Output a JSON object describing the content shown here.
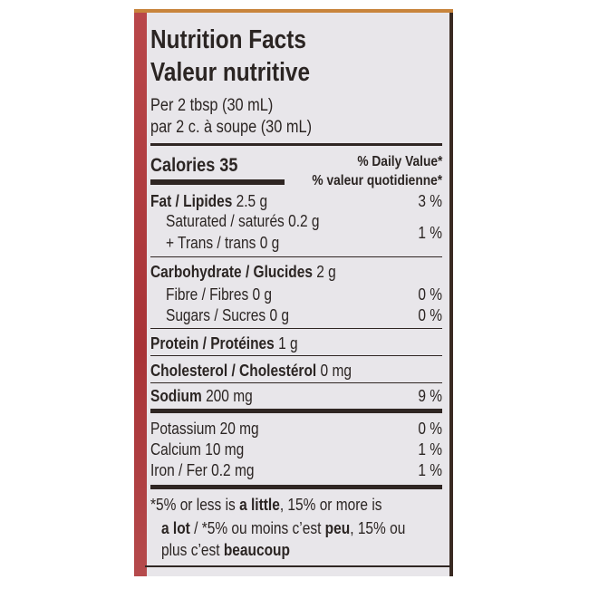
{
  "title_en": "Nutrition Facts",
  "title_fr": "Valeur nutritive",
  "serving_en": "Per 2 tbsp (30 mL)",
  "serving_fr": "par 2 c. à soupe (30 mL)",
  "calories": {
    "label": "Calories",
    "value": "35"
  },
  "dv_header_en": "% Daily Value*",
  "dv_header_fr": "% valeur quotidienne*",
  "rows": [
    {
      "label": "Fat / Lipides",
      "value": "2.5 g",
      "dv": "3 %"
    },
    {
      "label": "Saturated / saturés",
      "value": "0.2 g"
    },
    {
      "label": "+ Trans / trans",
      "value": "0 g",
      "dv": "1 %"
    },
    {
      "label": "Carbohydrate / Glucides",
      "value": "2 g"
    },
    {
      "label": "Fibre / Fibres",
      "value": "0 g",
      "dv": "0 %"
    },
    {
      "label": "Sugars / Sucres",
      "value": "0 g",
      "dv": "0 %"
    },
    {
      "label": "Protein / Protéines",
      "value": "1 g"
    },
    {
      "label": "Cholesterol / Cholestérol",
      "value": "0 mg"
    },
    {
      "label": "Sodium",
      "value": "200 mg",
      "dv": "9 %"
    },
    {
      "label": "Potassium",
      "value": "20 mg",
      "dv": "0 %"
    },
    {
      "label": "Calcium",
      "value": "10 mg",
      "dv": "1 %"
    },
    {
      "label": "Iron / Fer",
      "value": "0.2 mg",
      "dv": "1 %"
    }
  ],
  "footnote": {
    "p1": "*5% or less is ",
    "b1": "a little",
    "p2": ", 15% or more is",
    "b2": "a lot",
    "p3": " / *5% ou moins c’est ",
    "b3": "peu",
    "p4": ", 15% ou",
    "p5": "plus c’est ",
    "b5": "beaucoup"
  },
  "colors": {
    "panel": "#e8e6ea",
    "text": "#2b2523",
    "red_edge": "#a83236",
    "top_edge": "#c8843c"
  }
}
